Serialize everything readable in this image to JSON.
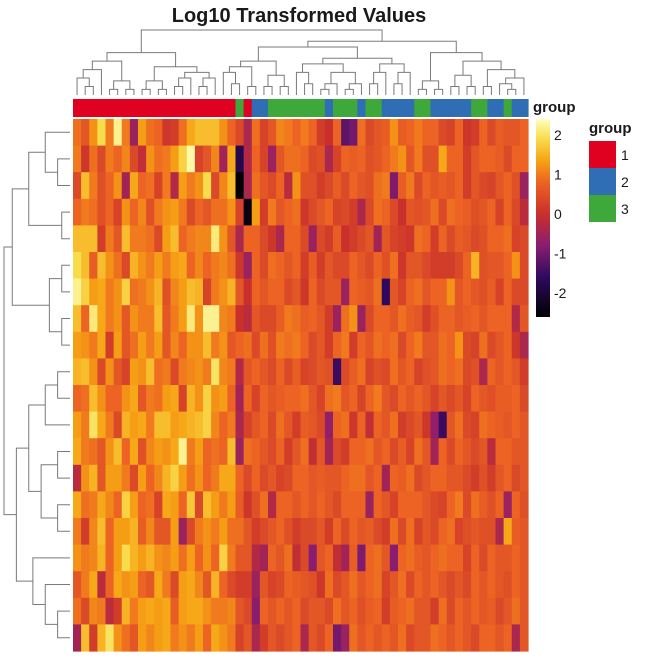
{
  "chart_data": {
    "type": "heatmap",
    "title": "Log10 Transformed Values",
    "annotation": {
      "track_label": "group",
      "legend_title": "group",
      "levels": [
        {
          "label": "1",
          "color": "#e00020"
        },
        {
          "label": "2",
          "color": "#2f6db5"
        },
        {
          "label": "3",
          "color": "#3fa83a"
        }
      ],
      "column_groups": [
        1,
        1,
        1,
        1,
        1,
        1,
        1,
        1,
        1,
        1,
        1,
        1,
        1,
        1,
        1,
        1,
        1,
        1,
        1,
        1,
        3,
        1,
        2,
        2,
        3,
        3,
        3,
        3,
        3,
        3,
        3,
        2,
        3,
        3,
        3,
        2,
        3,
        3,
        2,
        2,
        2,
        2,
        3,
        3,
        2,
        2,
        2,
        2,
        2,
        3,
        3,
        2,
        2,
        3,
        2,
        2
      ]
    },
    "color_scale": {
      "ticks": [
        2,
        1,
        0,
        -1,
        -2
      ],
      "range": [
        -2.6,
        2.4
      ],
      "stops": [
        {
          "value": -2.6,
          "color": "#000000"
        },
        {
          "value": -1.6,
          "color": "#2e0a5e"
        },
        {
          "value": -0.8,
          "color": "#8a1d70"
        },
        {
          "value": 0.0,
          "color": "#c9302c"
        },
        {
          "value": 0.8,
          "color": "#ec6323"
        },
        {
          "value": 1.35,
          "color": "#f6a313"
        },
        {
          "value": 1.9,
          "color": "#f8dc4c"
        },
        {
          "value": 2.4,
          "color": "#ffffbe"
        }
      ]
    },
    "n_rows": 20,
    "n_cols": 56,
    "values": [
      [
        0.9,
        0.6,
        1.2,
        1.9,
        1.0,
        2.2,
        1.0,
        -0.6,
        1.3,
        0.9,
        0.8,
        0.1,
        0.2,
        0.9,
        1.4,
        1.6,
        1.6,
        1.6,
        1.2,
        0.8,
        0.4,
        -0.4,
        0.9,
        0.3,
        0.6,
        1.1,
        1.0,
        0.8,
        1.0,
        0.8,
        0.2,
        0.0,
        0.8,
        -1.2,
        -1.0,
        0.9,
        0.4,
        0.6,
        0.7,
        1.2,
        0.7,
        0.8,
        1.0,
        0.8,
        0.8,
        0.4,
        0.3,
        0.8,
        0.1,
        0.2,
        0.8,
        0.4,
        0.7,
        0.6,
        0.6,
        0.8
      ],
      [
        1.0,
        0.1,
        0.9,
        0.4,
        1.0,
        0.8,
        1.1,
        0.4,
        -0.1,
        1.2,
        0.9,
        1.0,
        1.3,
        1.8,
        2.3,
        0.3,
        0.6,
        1.1,
        -0.5,
        1.4,
        -1.8,
        -0.3,
        0.8,
        0.3,
        -0.6,
        0.6,
        0.9,
        0.9,
        0.8,
        0.4,
        0.5,
        -0.4,
        0.3,
        0.8,
        0.7,
        0.8,
        0.5,
        0.6,
        0.8,
        1.0,
        1.2,
        0.6,
        1.0,
        0.5,
        0.5,
        1.4,
        0.8,
        0.8,
        0.2,
        0.6,
        0.8,
        0.8,
        0.7,
        0.4,
        0.8,
        0.8
      ],
      [
        0.4,
        1.6,
        1.0,
        0.5,
        0.8,
        1.2,
        -0.5,
        1.4,
        0.8,
        0.9,
        0.3,
        1.0,
        -0.3,
        1.3,
        1.0,
        1.2,
        1.9,
        0.4,
        1.1,
        1.6,
        -2.8,
        -0.4,
        0.9,
        0.6,
        0.4,
        0.8,
        -0.2,
        1.2,
        0.5,
        0.5,
        0.2,
        0.4,
        0.7,
        0.4,
        0.8,
        0.6,
        0.5,
        0.9,
        1.0,
        -0.9,
        0.7,
        1.0,
        0.4,
        0.8,
        0.6,
        0.7,
        0.6,
        0.8,
        0.2,
        0.6,
        0.4,
        0.3,
        0.6,
        0.8,
        0.5,
        -0.6
      ],
      [
        0.8,
        1.0,
        0.9,
        0.5,
        0.8,
        0.3,
        1.2,
        0.8,
        1.1,
        0.5,
        1.0,
        1.2,
        1.3,
        1.0,
        0.4,
        0.8,
        0.6,
        0.9,
        0.9,
        1.2,
        0.3,
        -2.4,
        1.3,
        0.2,
        1.0,
        0.6,
        0.8,
        0.9,
        0.1,
        0.4,
        0.6,
        0.8,
        0.3,
        0.4,
        0.2,
        -0.4,
        0.4,
        0.9,
        0.8,
        0.4,
        0.0,
        0.6,
        0.5,
        0.6,
        0.9,
        0.4,
        0.9,
        0.8,
        0.7,
        0.5,
        0.6,
        0.8,
        0.3,
        0.8,
        0.4,
        -0.2
      ],
      [
        1.6,
        1.6,
        1.6,
        0.2,
        1.0,
        0.6,
        1.6,
        1.0,
        1.0,
        0.9,
        0.4,
        1.3,
        1.6,
        0.8,
        1.0,
        1.1,
        1.1,
        2.1,
        1.2,
        0.6,
        -0.4,
        0.8,
        0.8,
        0.4,
        0.1,
        -0.4,
        0.8,
        0.8,
        0.4,
        -0.6,
        0.4,
        0.2,
        0.7,
        0.0,
        0.2,
        0.4,
        0.6,
        -0.5,
        0.6,
        0.3,
        0.2,
        0.1,
        0.9,
        0.8,
        0.2,
        0.8,
        0.4,
        0.7,
        0.6,
        0.4,
        0.5,
        0.8,
        0.8,
        0.9,
        0.3,
        0.4
      ],
      [
        1.9,
        1.6,
        0.7,
        1.6,
        1.2,
        0.9,
        0.4,
        1.5,
        1.2,
        1.0,
        1.3,
        1.0,
        1.3,
        1.4,
        0.8,
        1.1,
        0.8,
        1.0,
        1.1,
        0.9,
        0.1,
        -0.6,
        0.8,
        0.4,
        0.9,
        0.8,
        0.6,
        0.8,
        0.2,
        0.7,
        0.2,
        0.6,
        0.4,
        0.4,
        0.8,
        0.6,
        0.4,
        0.8,
        0.5,
        0.9,
        0.1,
        0.6,
        0.6,
        0.4,
        0.2,
        0.2,
        0.2,
        0.4,
        0.8,
        1.5,
        0.5,
        0.6,
        0.6,
        0.8,
        1.2,
        0.4
      ],
      [
        2.2,
        1.8,
        1.3,
        1.4,
        1.0,
        1.2,
        1.8,
        0.9,
        1.0,
        1.2,
        1.5,
        0.5,
        1.1,
        1.3,
        1.6,
        1.5,
        0.3,
        1.0,
        1.2,
        1.5,
        0.6,
        0.0,
        0.8,
        0.6,
        0.8,
        0.8,
        0.4,
        0.6,
        0.1,
        0.8,
        0.4,
        0.6,
        0.6,
        -0.6,
        0.8,
        0.7,
        0.6,
        0.9,
        -1.6,
        0.6,
        0.3,
        0.8,
        0.9,
        0.6,
        0.8,
        0.8,
        1.2,
        0.6,
        0.8,
        0.6,
        0.5,
        0.7,
        0.3,
        0.8,
        0.4,
        0.4
      ],
      [
        1.6,
        0.8,
        2.1,
        1.4,
        1.0,
        1.2,
        0.6,
        1.2,
        1.0,
        1.0,
        1.6,
        0.6,
        1.0,
        1.3,
        2.1,
        1.2,
        2.2,
        2.2,
        1.1,
        1.0,
        0.0,
        -0.2,
        0.6,
        0.4,
        0.4,
        0.7,
        1.0,
        0.9,
        0.7,
        0.8,
        0.6,
        0.2,
        -0.6,
        0.9,
        1.2,
        -0.6,
        0.4,
        0.8,
        0.8,
        0.6,
        0.9,
        0.7,
        0.6,
        0.2,
        0.5,
        0.8,
        0.8,
        0.6,
        0.7,
        0.8,
        0.6,
        0.8,
        0.8,
        0.8,
        -0.3,
        0.6
      ],
      [
        1.3,
        1.2,
        1.0,
        1.4,
        0.2,
        1.3,
        0.6,
        0.9,
        1.3,
        1.0,
        1.3,
        0.6,
        1.1,
        0.8,
        1.2,
        1.2,
        1.6,
        1.0,
        1.2,
        0.6,
        0.8,
        0.9,
        0.4,
        0.9,
        0.5,
        1.0,
        0.9,
        1.0,
        0.8,
        0.4,
        0.6,
        0.2,
        0.8,
        1.0,
        0.2,
        0.8,
        0.6,
        0.9,
        0.8,
        0.9,
        0.4,
        0.8,
        1.0,
        0.6,
        0.6,
        0.9,
        0.8,
        1.2,
        0.4,
        0.3,
        0.9,
        0.4,
        0.6,
        0.8,
        0.1,
        -0.4
      ],
      [
        1.5,
        1.6,
        1.2,
        0.4,
        1.2,
        0.6,
        0.3,
        1.3,
        1.2,
        1.6,
        0.9,
        1.0,
        0.4,
        1.0,
        1.1,
        1.2,
        1.0,
        2.0,
        1.1,
        1.0,
        -0.3,
        0.6,
        0.8,
        0.6,
        0.4,
        0.8,
        0.4,
        0.7,
        0.3,
        0.4,
        0.6,
        0.5,
        -1.5,
        0.4,
        0.7,
        0.9,
        0.3,
        0.5,
        0.4,
        0.9,
        0.6,
        0.8,
        0.3,
        0.5,
        0.6,
        0.9,
        0.8,
        0.9,
        0.4,
        0.5,
        -0.4,
        0.8,
        0.6,
        0.8,
        0.6,
        0.2
      ],
      [
        0.8,
        0.9,
        1.6,
        1.2,
        0.8,
        0.8,
        1.2,
        1.4,
        0.6,
        1.0,
        0.9,
        1.3,
        1.4,
        0.3,
        1.5,
        1.2,
        1.8,
        1.2,
        1.3,
        0.8,
        -0.5,
        0.8,
        0.3,
        0.8,
        0.6,
        0.7,
        0.8,
        0.8,
        0.9,
        0.6,
        0.3,
        0.9,
        1.0,
        0.6,
        0.8,
        0.3,
        0.8,
        1.0,
        0.6,
        0.4,
        0.8,
        0.6,
        0.8,
        0.6,
        0.3,
        0.6,
        0.4,
        0.6,
        0.3,
        0.8,
        0.6,
        0.5,
        0.7,
        0.7,
        0.8,
        0.4
      ],
      [
        1.3,
        1.0,
        2.0,
        1.4,
        1.0,
        0.4,
        1.5,
        1.3,
        1.4,
        1.0,
        1.6,
        1.6,
        1.3,
        1.4,
        1.5,
        1.6,
        1.8,
        1.1,
        0.8,
        1.0,
        -0.4,
        0.3,
        0.6,
        0.8,
        0.4,
        0.9,
        0.6,
        0.2,
        0.7,
        0.6,
        0.4,
        -0.7,
        0.8,
        0.9,
        0.1,
        0.8,
        -0.1,
        0.8,
        0.6,
        0.9,
        0.2,
        0.4,
        0.6,
        0.1,
        -0.7,
        -1.5,
        0.6,
        0.9,
        0.4,
        0.3,
        0.9,
        0.8,
        0.7,
        0.6,
        0.8,
        0.6
      ],
      [
        1.4,
        1.0,
        0.9,
        0.6,
        1.2,
        1.6,
        0.8,
        1.4,
        0.5,
        1.1,
        1.3,
        1.2,
        1.4,
        2.2,
        1.0,
        1.3,
        0.8,
        0.9,
        0.8,
        1.6,
        -0.6,
        0.9,
        0.8,
        0.6,
        0.4,
        0.8,
        0.2,
        0.6,
        0.9,
        -0.1,
        0.6,
        -0.5,
        0.4,
        0.2,
        0.8,
        0.8,
        0.9,
        0.6,
        0.8,
        0.4,
        0.7,
        0.3,
        0.9,
        0.6,
        -0.5,
        0.8,
        0.4,
        0.8,
        0.6,
        0.4,
        0.6,
        -0.2,
        0.8,
        0.8,
        0.6,
        0.6
      ],
      [
        -0.2,
        1.2,
        1.5,
        0.6,
        1.3,
        1.3,
        1.0,
        0.4,
        1.3,
        0.8,
        1.1,
        1.5,
        1.8,
        1.3,
        0.9,
        1.2,
        0.8,
        1.0,
        1.4,
        1.4,
        0.8,
        0.4,
        0.8,
        0.4,
        0.6,
        0.3,
        0.4,
        0.8,
        0.8,
        0.6,
        0.7,
        0.6,
        0.6,
        0.8,
        0.9,
        0.9,
        0.6,
        0.8,
        -0.5,
        0.8,
        0.7,
        0.9,
        0.4,
        0.6,
        0.8,
        0.8,
        0.6,
        0.6,
        0.4,
        0.2,
        0.5,
        0.2,
        0.6,
        0.8,
        0.4,
        0.6
      ],
      [
        1.4,
        0.9,
        1.0,
        1.4,
        1.1,
        0.8,
        1.8,
        1.3,
        0.8,
        0.9,
        0.3,
        1.4,
        1.3,
        0.8,
        1.7,
        0.4,
        1.6,
        1.3,
        1.0,
        1.3,
        0.7,
        0.1,
        0.5,
        0.9,
        -0.3,
        0.8,
        0.8,
        0.6,
        0.8,
        0.6,
        0.8,
        0.6,
        0.4,
        0.8,
        0.8,
        0.8,
        -0.6,
        0.8,
        0.6,
        0.3,
        0.8,
        0.8,
        0.8,
        0.6,
        0.4,
        0.3,
        0.8,
        1.0,
        0.4,
        0.9,
        0.7,
        0.5,
        0.8,
        -0.6,
        0.8,
        0.5
      ],
      [
        1.0,
        0.2,
        1.1,
        1.6,
        0.8,
        1.3,
        1.3,
        1.5,
        0.7,
        1.1,
        0.6,
        0.6,
        1.3,
        -0.6,
        0.4,
        1.0,
        1.2,
        1.0,
        1.3,
        0.9,
        0.9,
        0.6,
        0.2,
        0.4,
        0.6,
        0.8,
        0.5,
        0.2,
        0.4,
        0.4,
        0.6,
        0.2,
        0.8,
        0.4,
        0.8,
        0.6,
        0.7,
        0.4,
        0.2,
        0.9,
        0.4,
        0.9,
        0.3,
        0.6,
        0.4,
        0.8,
        0.9,
        0.3,
        0.5,
        0.6,
        0.5,
        0.5,
        -0.4,
        1.4,
        0.7,
        0.6
      ],
      [
        1.2,
        1.0,
        1.1,
        1.5,
        0.8,
        1.3,
        1.9,
        1.5,
        1.3,
        1.5,
        1.2,
        1.1,
        1.3,
        0.9,
        1.3,
        0.8,
        1.2,
        0.8,
        1.8,
        1.0,
        0.6,
        0.6,
        -0.3,
        -0.5,
        0.8,
        0.6,
        0.9,
        -0.1,
        0.4,
        -0.8,
        0.6,
        0.8,
        -0.1,
        -0.5,
        0.7,
        -0.9,
        0.8,
        0.9,
        0.6,
        -0.8,
        0.8,
        0.9,
        0.7,
        0.6,
        0.8,
        0.9,
        0.8,
        0.8,
        0.3,
        0.8,
        0.4,
        0.8,
        0.6,
        0.6,
        0.8,
        0.6
      ],
      [
        0.6,
        1.0,
        1.4,
        -0.2,
        0.8,
        1.4,
        1.2,
        1.3,
        0.8,
        0.6,
        1.4,
        1.0,
        0.4,
        1.3,
        1.4,
        1.1,
        0.6,
        1.5,
        0.8,
        0.4,
        0.2,
        0.2,
        -0.6,
        0.6,
        0.3,
        0.4,
        0.8,
        0.7,
        0.6,
        0.5,
        0.1,
        0.9,
        0.4,
        0.6,
        0.9,
        0.6,
        0.8,
        0.9,
        0.3,
        0.6,
        0.9,
        0.4,
        0.8,
        0.6,
        0.8,
        0.6,
        0.4,
        0.6,
        0.4,
        0.8,
        0.6,
        0.8,
        0.6,
        0.5,
        0.8,
        0.6
      ],
      [
        0.9,
        0.4,
        1.1,
        1.0,
        -0.2,
        0.2,
        1.5,
        1.0,
        1.3,
        1.4,
        1.3,
        1.4,
        0.7,
        1.3,
        1.4,
        1.4,
        1.2,
        1.0,
        1.0,
        1.1,
        0.6,
        0.4,
        -0.8,
        0.8,
        0.6,
        0.8,
        0.6,
        0.8,
        0.4,
        0.6,
        0.6,
        0.4,
        0.9,
        0.6,
        0.8,
        0.5,
        0.7,
        0.8,
        0.2,
        0.7,
        0.8,
        0.9,
        0.6,
        0.6,
        0.2,
        0.9,
        0.4,
        0.8,
        0.6,
        0.8,
        0.6,
        0.7,
        0.4,
        0.6,
        0.9,
        0.6
      ],
      [
        -0.5,
        1.6,
        0.2,
        1.5,
        2.0,
        1.2,
        0.9,
        0.6,
        1.3,
        1.1,
        1.3,
        1.4,
        1.0,
        1.2,
        1.0,
        1.3,
        0.8,
        1.4,
        1.2,
        1.0,
        0.3,
        0.6,
        -0.4,
        0.2,
        0.6,
        0.4,
        0.6,
        0.8,
        -0.4,
        0.6,
        0.4,
        0.8,
        -1.0,
        -0.6,
        0.9,
        0.6,
        0.8,
        0.6,
        0.8,
        0.6,
        0.9,
        0.4,
        0.6,
        0.6,
        0.9,
        0.8,
        0.6,
        0.8,
        0.6,
        0.4,
        0.8,
        0.8,
        0.6,
        0.8,
        -0.4,
        0.6
      ]
    ]
  }
}
